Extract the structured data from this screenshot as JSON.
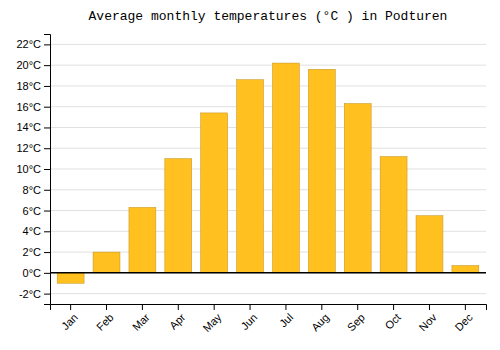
{
  "chart_data": {
    "type": "bar",
    "title": "Average monthly temperatures (°C ) in Podturen",
    "categories": [
      "Jan",
      "Feb",
      "Mar",
      "Apr",
      "May",
      "Jun",
      "Jul",
      "Aug",
      "Sep",
      "Oct",
      "Nov",
      "Dec"
    ],
    "values": [
      -1.0,
      2.0,
      6.3,
      11.0,
      15.4,
      18.6,
      20.2,
      19.6,
      16.3,
      11.2,
      5.5,
      0.7
    ],
    "color": "#FFC020",
    "ylim": [
      -3,
      23
    ],
    "yticks": [
      {
        "value": -2,
        "label": "-2°C"
      },
      {
        "value": 0,
        "label": "0°C"
      },
      {
        "value": 2,
        "label": "2°C"
      },
      {
        "value": 4,
        "label": "4°C"
      },
      {
        "value": 6,
        "label": "6°C"
      },
      {
        "value": 8,
        "label": "8°C"
      },
      {
        "value": 10,
        "label": "10°C"
      },
      {
        "value": 12,
        "label": "12°C"
      },
      {
        "value": 14,
        "label": "14°C"
      },
      {
        "value": 16,
        "label": "16°C"
      },
      {
        "value": 18,
        "label": "18°C"
      },
      {
        "value": 20,
        "label": "20°C"
      },
      {
        "value": 22,
        "label": "22°C"
      }
    ],
    "grid": true
  }
}
